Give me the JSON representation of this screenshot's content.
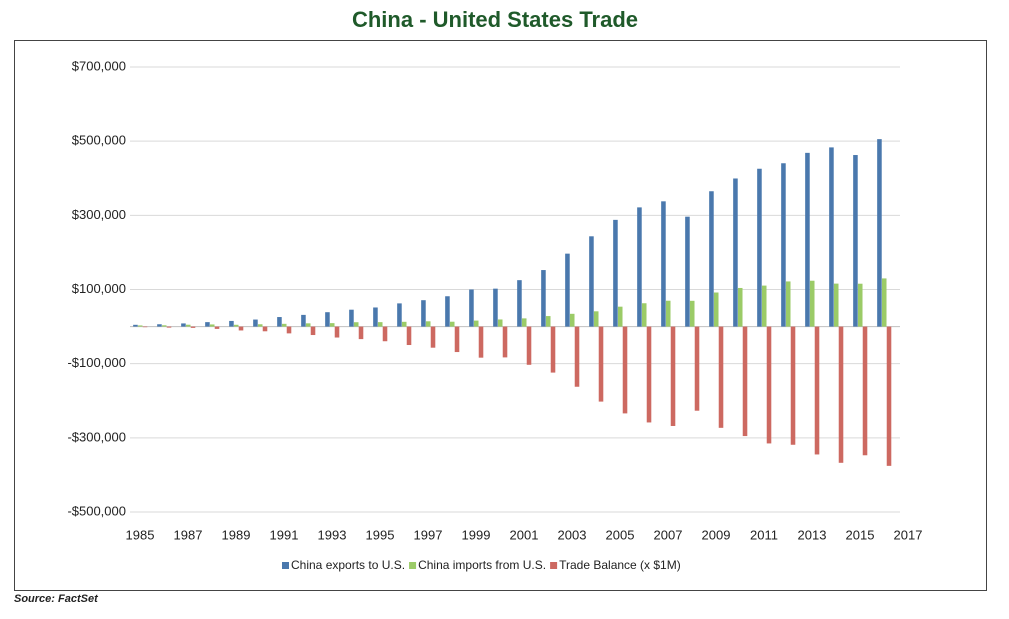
{
  "chart_data": {
    "type": "bar",
    "title": "China - United States Trade",
    "source": "Source: FactSet",
    "x": [
      1985,
      1986,
      1987,
      1988,
      1989,
      1990,
      1991,
      1992,
      1993,
      1994,
      1995,
      1996,
      1997,
      1998,
      1999,
      2000,
      2001,
      2002,
      2003,
      2004,
      2005,
      2006,
      2007,
      2008,
      2009,
      2010,
      2011,
      2012,
      2013,
      2014,
      2015,
      2016
    ],
    "xlim": [
      1985,
      2017
    ],
    "xticks": [
      1985,
      1987,
      1989,
      1991,
      1993,
      1995,
      1997,
      1999,
      2001,
      2003,
      2005,
      2007,
      2009,
      2011,
      2013,
      2015,
      2017
    ],
    "ylim": [
      -500000,
      700000
    ],
    "yticks": [
      {
        "value": -500000,
        "label": "-$500,000"
      },
      {
        "value": -300000,
        "label": "-$300,000"
      },
      {
        "value": -100000,
        "label": "-$100,000"
      },
      {
        "value": 100000,
        "label": "$100,000"
      },
      {
        "value": 300000,
        "label": "$300,000"
      },
      {
        "value": 500000,
        "label": "$500,000"
      },
      {
        "value": 700000,
        "label": "$700,000"
      }
    ],
    "grid": true,
    "legend": "bottom",
    "series": [
      {
        "name": "China exports to U.S.",
        "color": "#4a78ad",
        "values": [
          4771,
          6294,
          8511,
          11990,
          15237,
          18969,
          25728,
          31540,
          38787,
          45543,
          51513,
          62558,
          71169,
          81788,
          100018,
          102278,
          125193,
          152436,
          196682,
          243470,
          287774,
          321443,
          337773,
          296374,
          364953,
          399371,
          425619,
          440430,
          468475,
          483202,
          462618,
          505470
        ]
      },
      {
        "name": "China imports from U.S.",
        "color": "#9bcb67",
        "values": [
          3106,
          3497,
          5022,
          5755,
          4806,
          6278,
          7418,
          8763,
          9282,
          11754,
          11993,
          12862,
          14241,
          13111,
          16185,
          19182,
          22128,
          28368,
          34428,
          41192,
          53673,
          62937,
          69733,
          69497,
          91911,
          104122,
          110517,
          121746,
          123657,
          115873,
          115595,
          129894
        ]
      },
      {
        "name": "Trade Balance (x $1M)",
        "color": "#cd6961",
        "values": [
          -1665,
          -2796,
          -3489,
          -6235,
          -10431,
          -12691,
          -18309,
          -22777,
          -29505,
          -33790,
          -39520,
          -49696,
          -56927,
          -68677,
          -83833,
          -83096,
          -103065,
          -124068,
          -162254,
          -202278,
          -234101,
          -258506,
          -268040,
          -226877,
          -273042,
          -295250,
          -315102,
          -318684,
          -344818,
          -367328,
          -347023,
          -375576
        ]
      }
    ]
  }
}
